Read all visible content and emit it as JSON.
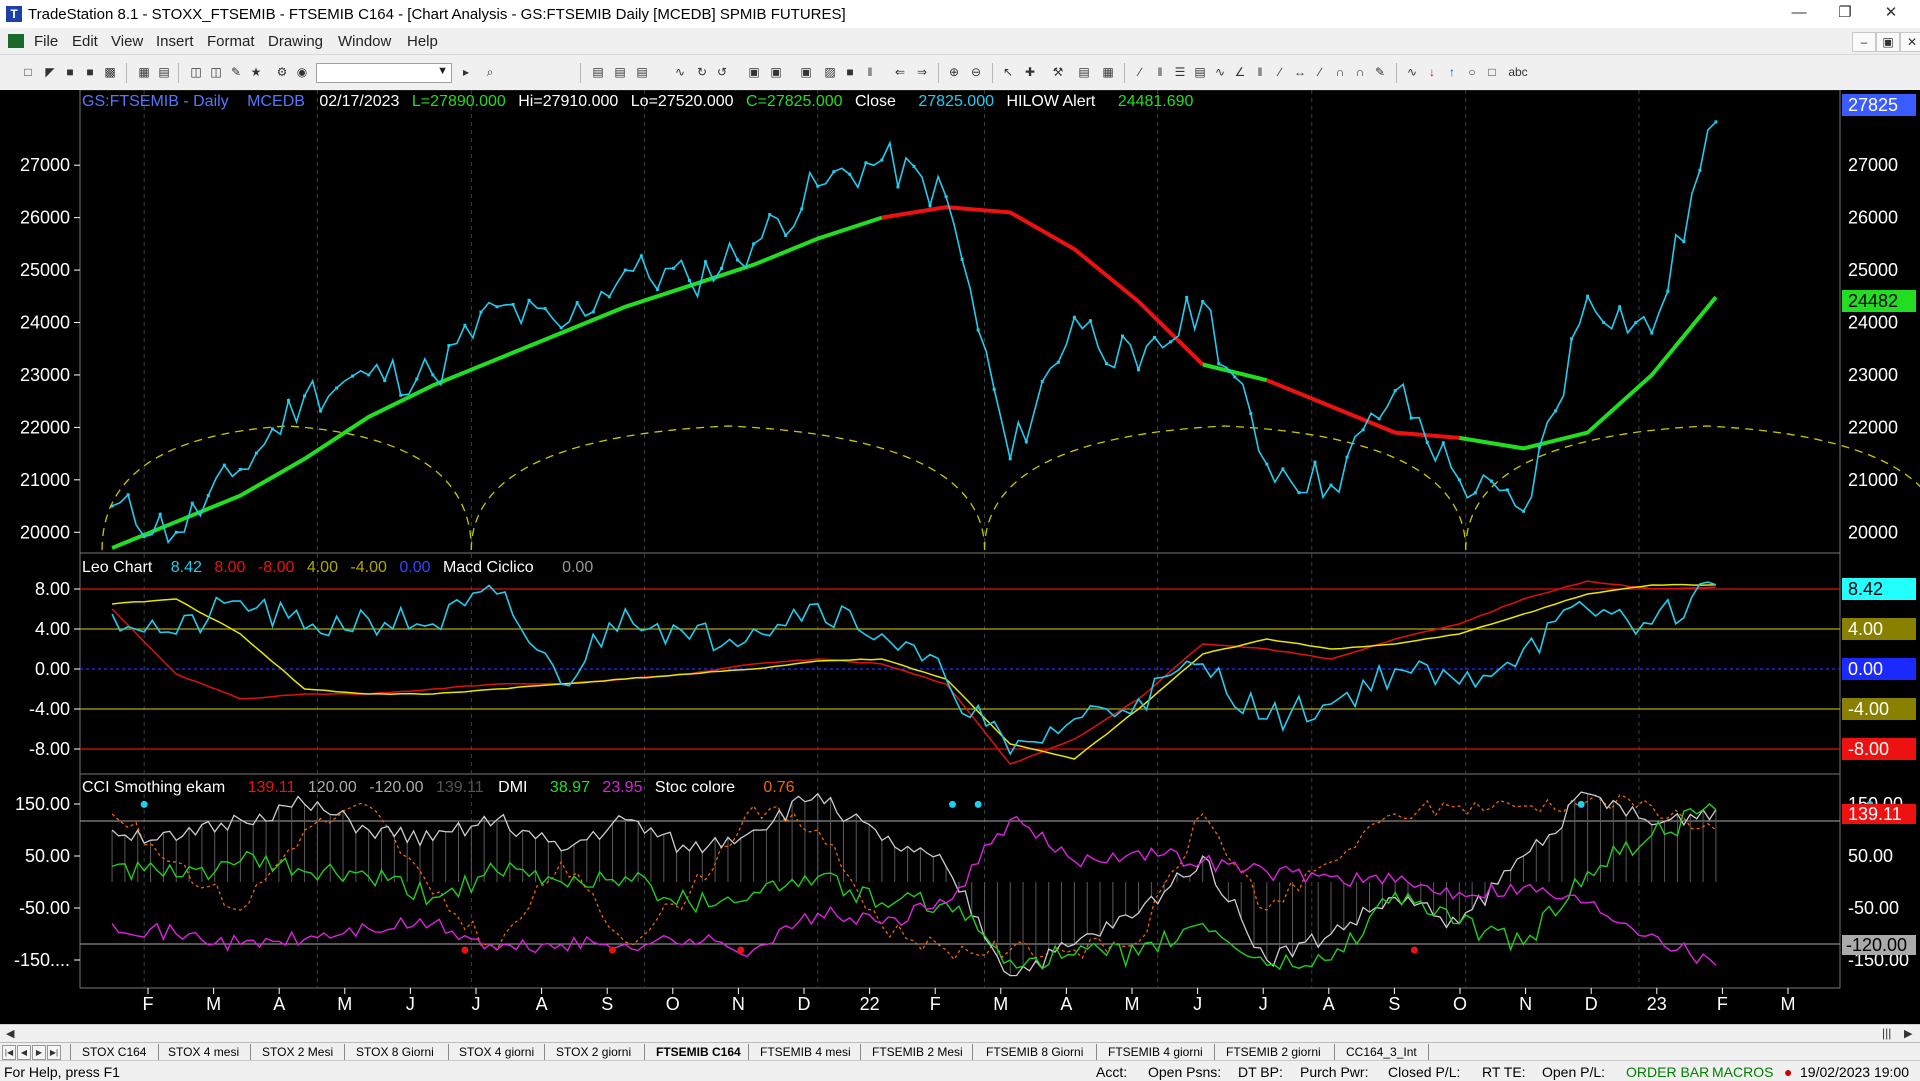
{
  "window": {
    "title": "TradeStation 8.1 - STOXX_FTSEMIB - FTSEMIB C164 - [Chart Analysis - GS:FTSEMIB  Daily  [MCEDB] SPMIB FUTURES]"
  },
  "menu": {
    "items": [
      "File",
      "Edit",
      "View",
      "Insert",
      "Format",
      "Drawing",
      "Window",
      "Help"
    ]
  },
  "price_panel": {
    "symbol": "GS:FTSEMIB - Daily",
    "source": "MCEDB",
    "date": "02/17/2023",
    "ohlc": [
      "L=27890.000",
      "Hi=27910.000",
      "Lo=27520.000",
      "C=27825.000"
    ],
    "close_label": "Close",
    "close_value": "27825.000",
    "alert_label": "HILOW Alert",
    "alert_value": "24481.690",
    "y_ticks": [
      "27000",
      "26000",
      "25000",
      "24000",
      "23000",
      "22000",
      "21000",
      "20000"
    ],
    "last_price_box": "27825",
    "ma_price_box": "24482"
  },
  "osc_panel": {
    "name": "Leo Chart",
    "values": [
      "8.42",
      "8.00",
      "-8.00",
      "4.00",
      "-4.00",
      "0.00"
    ],
    "name2": "Macd Ciclico",
    "value2": "0.00",
    "y_ticks": [
      "8.00",
      "4.00",
      "0.00",
      "-4.00",
      "-8.00"
    ],
    "right_boxes": [
      "8.42",
      "4.00",
      "0.00",
      "-4.00",
      "-8.00"
    ]
  },
  "cci_panel": {
    "name": "CCI Smothing ekam",
    "values": [
      "139.11",
      "120.00",
      "-120.00",
      "139.11"
    ],
    "dmi_label": "DMI",
    "dmi_values": [
      "38.97",
      "23.95"
    ],
    "stoc_label": "Stoc colore",
    "stoc_value": "0.76",
    "y_ticks": [
      "150.00",
      "50.00",
      "-50.00",
      "-150...."
    ],
    "right_labels": [
      "150.00",
      "50.00",
      "-50.00",
      "-150.00"
    ],
    "right_boxes": [
      "139.11",
      "-120.00"
    ]
  },
  "x_axis": {
    "labels": [
      "F",
      "M",
      "A",
      "M",
      "J",
      "J",
      "A",
      "S",
      "O",
      "N",
      "D",
      "22",
      "F",
      "M",
      "A",
      "M",
      "J",
      "J",
      "A",
      "S",
      "O",
      "N",
      "D",
      "23",
      "F",
      "M"
    ]
  },
  "chart_data": [
    {
      "type": "line",
      "title": "GS:FTSEMIB - Daily",
      "x": [
        "2021-01",
        "2021-02",
        "2021-03",
        "2021-04",
        "2021-05",
        "2021-06",
        "2021-07",
        "2021-08",
        "2021-09",
        "2021-10",
        "2021-11",
        "2021-12",
        "2022-01",
        "2022-02",
        "2022-03",
        "2022-04",
        "2022-05",
        "2022-06",
        "2022-07",
        "2022-08",
        "2022-09",
        "2022-10",
        "2022-11",
        "2022-12",
        "2023-01",
        "2023-02"
      ],
      "series": [
        {
          "values": [
            20500,
            20000,
            21200,
            22600,
            23000,
            23000,
            24300,
            23900,
            25000,
            24800,
            25500,
            26600,
            27100,
            26400,
            21400,
            24100,
            23100,
            24400,
            21300,
            20900,
            22700,
            21000,
            20400,
            24500,
            23800,
            27825
          ]
        },
        {
          "values": [
            19700,
            20200,
            20700,
            21400,
            22200,
            22800,
            23300,
            23800,
            24300,
            24700,
            25100,
            25600,
            26000,
            26200,
            26100,
            25400,
            24400,
            23200,
            22900,
            22400,
            21900,
            21800,
            21600,
            21900,
            23000,
            24482
          ]
        }
      ],
      "ylim": [
        19700,
        27900
      ]
    },
    {
      "type": "line",
      "title": "Leo Chart",
      "x": [
        "2021-01",
        "2021-02",
        "2021-03",
        "2021-04",
        "2021-05",
        "2021-06",
        "2021-07",
        "2021-08",
        "2021-09",
        "2021-10",
        "2021-11",
        "2021-12",
        "2022-01",
        "2022-02",
        "2022-03",
        "2022-04",
        "2022-05",
        "2022-06",
        "2022-07",
        "2022-08",
        "2022-09",
        "2022-10",
        "2022-11",
        "2022-12",
        "2023-01",
        "2023-02"
      ],
      "series": [
        {
          "values": [
            5.5,
            3.5,
            6.8,
            4.0,
            5.0,
            4.5,
            7.5,
            -1.5,
            6.0,
            3.0,
            4.0,
            6.5,
            3.5,
            -1.0,
            -8.5,
            -5.0,
            -3.0,
            0.5,
            -5.0,
            -3.5,
            0.0,
            -1.5,
            2.0,
            6.0,
            4.5,
            8.42
          ]
        },
        {
          "values": [
            6.0,
            -0.5,
            -3.0,
            -2.5,
            -2.5,
            -2.0,
            -1.5,
            -1.5,
            -1.0,
            -0.5,
            0.5,
            1.0,
            0.5,
            -1.5,
            -9.5,
            -7.0,
            -3.0,
            2.5,
            2.0,
            1.0,
            3.0,
            4.5,
            7.0,
            8.8,
            8.0,
            8.2
          ]
        },
        {
          "values": [
            6.5,
            7.0,
            3.5,
            -2.0,
            -2.5,
            -2.5,
            -2.0,
            -1.5,
            -1.0,
            -0.5,
            0.0,
            0.8,
            1.0,
            -1.0,
            -7.5,
            -9.0,
            -4.0,
            1.5,
            3.0,
            2.0,
            2.5,
            3.5,
            5.5,
            7.5,
            8.4,
            8.42
          ]
        }
      ],
      "ylim": [
        -10,
        10
      ]
    },
    {
      "type": "line",
      "title": "CCI Smothing ekam",
      "x": [
        "2021-01",
        "2021-02",
        "2021-03",
        "2021-04",
        "2021-05",
        "2021-06",
        "2021-07",
        "2021-08",
        "2021-09",
        "2021-10",
        "2021-11",
        "2021-12",
        "2022-01",
        "2022-02",
        "2022-03",
        "2022-04",
        "2022-05",
        "2022-06",
        "2022-07",
        "2022-08",
        "2022-09",
        "2022-10",
        "2022-11",
        "2022-12",
        "2023-01",
        "2023-02"
      ],
      "series": [
        {
          "values": [
            100,
            80,
            120,
            150,
            100,
            80,
            120,
            60,
            120,
            60,
            100,
            170,
            80,
            30,
            -180,
            -120,
            -60,
            50,
            -150,
            -100,
            -30,
            -80,
            50,
            170,
            110,
            139.11
          ]
        },
        {
          "values": [
            30,
            10,
            40,
            20,
            10,
            -30,
            20,
            0,
            10,
            -40,
            -20,
            10,
            -40,
            -40,
            -150,
            -140,
            -140,
            -80,
            -160,
            -150,
            -20,
            -80,
            -120,
            20,
            90,
            139.11
          ]
        },
        {
          "values": [
            -80,
            -100,
            -120,
            -110,
            -90,
            -80,
            -130,
            -120,
            -120,
            -110,
            -130,
            -60,
            -80,
            -40,
            120,
            40,
            60,
            40,
            20,
            10,
            0,
            -20,
            -10,
            -40,
            -100,
            -160
          ]
        }
      ],
      "ylim": [
        -180,
        190
      ]
    }
  ],
  "sheet_tabs": [
    "STOX C164",
    "STOX 4 mesi",
    "STOX  2 Mesi",
    "STOX  8 Giorni",
    "STOX 4 giorni",
    "STOX  2 giorni",
    "FTSEMIB C164",
    "FTSEMIB 4 mesi",
    "FTSEMIB  2 Mesi",
    "FTSEMIB  8 Giorni",
    "FTSEMIB  4 giorni",
    "FTSEMIB  2 giorni",
    "CC164_3_Int"
  ],
  "status": {
    "help": "For Help, press F1",
    "acct": "Acct:",
    "open_psns": "Open Psns:",
    "dt_bp": "DT BP:",
    "purch_pwr": "Purch Pwr:",
    "closed_pl": "Closed P/L:",
    "rt_te": "RT TE:",
    "open_pl": "Open P/L:",
    "order_bar": "ORDER BAR",
    "macros": "MACROS",
    "datetime": "19/02/2023 19:00"
  },
  "colors": {
    "price": "#22ccee",
    "ma_up": "#22dd22",
    "ma_down": "#ee1111",
    "cycle": "#d4d400",
    "osc_main": "#22ccee",
    "osc_red": "#dd1111",
    "osc_yellow": "#e6e600",
    "cci": "#cccccc",
    "dmi_plus": "#22cc22",
    "dmi_minus": "#dd22dd",
    "stoc": "#ee6600"
  }
}
